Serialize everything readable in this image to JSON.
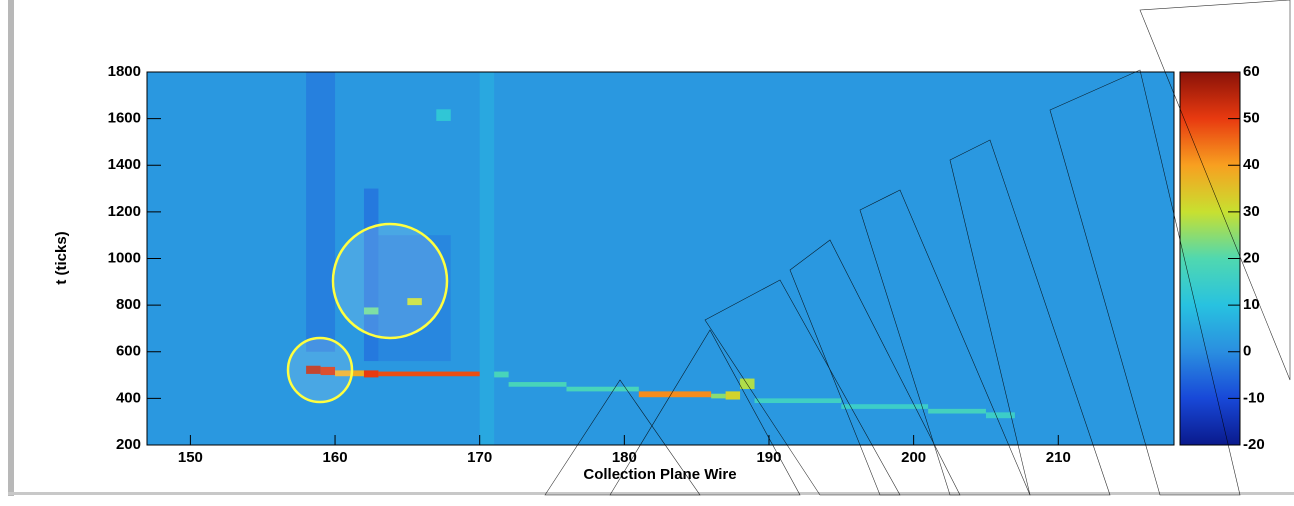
{
  "chart_data": {
    "type": "heatmap",
    "xlabel": "Collection Plane Wire",
    "ylabel": "t (ticks)",
    "xlim": [
      147,
      218
    ],
    "ylim": [
      200,
      1800
    ],
    "xticks": [
      150,
      160,
      170,
      180,
      190,
      200,
      210
    ],
    "yticks": [
      200,
      400,
      600,
      800,
      1000,
      1200,
      1400,
      1600,
      1800
    ],
    "zlim": [
      -20,
      60
    ],
    "zticks": [
      -20,
      -10,
      0,
      10,
      20,
      30,
      40,
      50,
      60
    ],
    "colormap": [
      "#0a1a8c",
      "#1848d8",
      "#2a8ee0",
      "#28c2e0",
      "#50d8b0",
      "#c8e030",
      "#f8a020",
      "#e83a10",
      "#8a1208"
    ],
    "cells": [
      {
        "x": [
          147,
          218
        ],
        "y": [
          200,
          1800
        ],
        "value": 2
      },
      {
        "x": [
          158,
          160
        ],
        "y": [
          600,
          1800
        ],
        "value": -2
      },
      {
        "x": [
          162,
          163
        ],
        "y": [
          560,
          1300
        ],
        "value": -3
      },
      {
        "x": [
          163,
          168
        ],
        "y": [
          560,
          1100
        ],
        "value": -1
      },
      {
        "x": [
          170,
          171
        ],
        "y": [
          200,
          1800
        ],
        "value": 5
      },
      {
        "x": [
          167,
          168
        ],
        "y": [
          1590,
          1640
        ],
        "value": 12
      },
      {
        "x": [
          165,
          166
        ],
        "y": [
          800,
          830
        ],
        "value": 30
      },
      {
        "x": [
          162,
          163
        ],
        "y": [
          760,
          790
        ],
        "value": 22
      },
      {
        "x": [
          158,
          159
        ],
        "y": [
          505,
          540
        ],
        "value": 55
      },
      {
        "x": [
          159,
          160
        ],
        "y": [
          500,
          535
        ],
        "value": 52
      },
      {
        "x": [
          160,
          162
        ],
        "y": [
          495,
          520
        ],
        "value": 38
      },
      {
        "x": [
          162,
          163
        ],
        "y": [
          490,
          520
        ],
        "value": 50
      },
      {
        "x": [
          163,
          170
        ],
        "y": [
          495,
          515
        ],
        "value": 48
      },
      {
        "x": [
          171,
          172
        ],
        "y": [
          490,
          515
        ],
        "value": 18
      },
      {
        "x": [
          172,
          176
        ],
        "y": [
          450,
          470
        ],
        "value": 18
      },
      {
        "x": [
          176,
          181
        ],
        "y": [
          430,
          450
        ],
        "value": 18
      },
      {
        "x": [
          181,
          186
        ],
        "y": [
          405,
          430
        ],
        "value": 42
      },
      {
        "x": [
          186,
          187
        ],
        "y": [
          400,
          420
        ],
        "value": 25
      },
      {
        "x": [
          187,
          188
        ],
        "y": [
          395,
          430
        ],
        "value": 32
      },
      {
        "x": [
          188,
          189
        ],
        "y": [
          440,
          485
        ],
        "value": 28
      },
      {
        "x": [
          189,
          195
        ],
        "y": [
          380,
          400
        ],
        "value": 16
      },
      {
        "x": [
          195,
          201
        ],
        "y": [
          355,
          375
        ],
        "value": 15
      },
      {
        "x": [
          201,
          205
        ],
        "y": [
          335,
          355
        ],
        "value": 17
      },
      {
        "x": [
          205,
          207
        ],
        "y": [
          315,
          340
        ],
        "value": 15
      }
    ]
  }
}
